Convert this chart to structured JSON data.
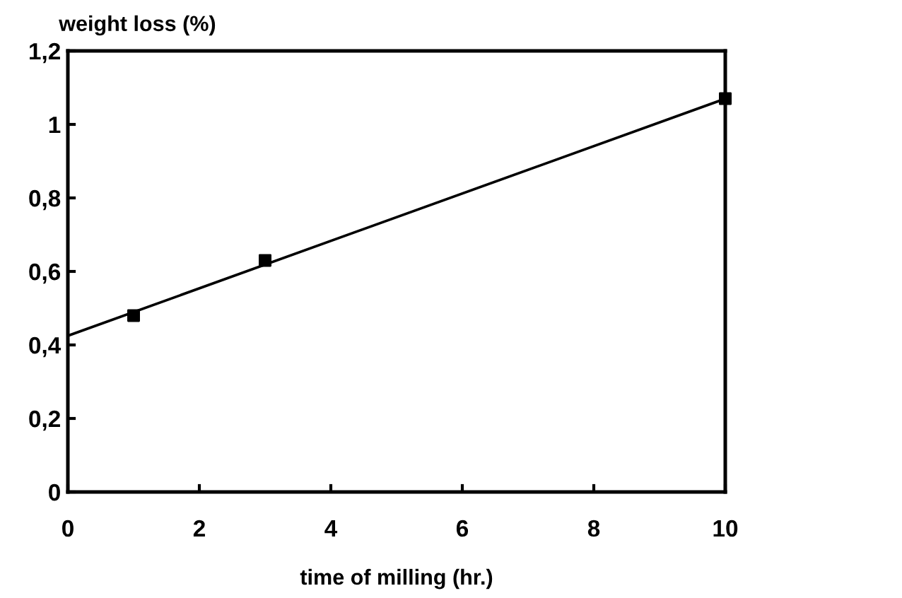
{
  "chart_data": {
    "type": "scatter",
    "ylabel": "weight loss (%)",
    "xlabel": "time of milling (hr.)",
    "series": [
      {
        "color": "#000000",
        "marker": "square",
        "x": [
          1,
          3,
          10
        ],
        "values": [
          0.48,
          0.63,
          1.07
        ]
      },
      {
        "type": "line",
        "color": "#000000",
        "marker": "none",
        "x": [
          0,
          10
        ],
        "values": [
          0.425,
          1.07
        ]
      }
    ],
    "xlim": [
      0,
      10
    ],
    "xticks": [
      0,
      2,
      4,
      6,
      8,
      10
    ],
    "ylim": [
      0,
      1.2
    ],
    "yticks": [
      0,
      {
        "value": 0.2,
        "label": "0,2"
      },
      {
        "value": 0.4,
        "label": "0,4"
      },
      {
        "value": 0.6,
        "label": "0,6"
      },
      {
        "value": 0.8,
        "label": "0,8"
      },
      1,
      {
        "value": 1.2,
        "label": "1,2"
      }
    ],
    "grid": false,
    "legend": false
  }
}
